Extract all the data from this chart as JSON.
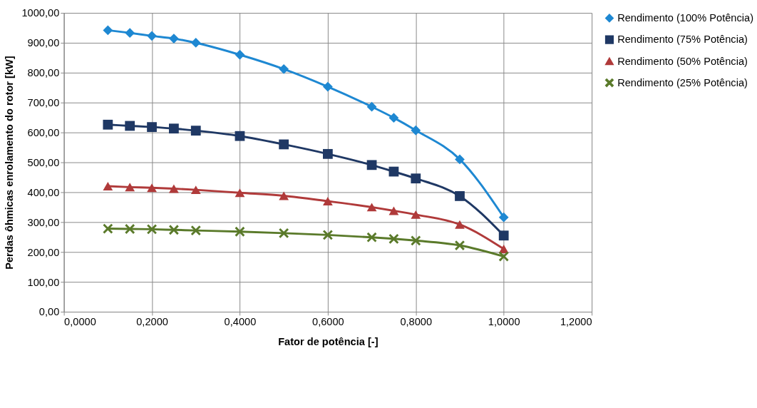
{
  "chart_data": {
    "type": "line",
    "xlabel": "Fator de potência [-]",
    "ylabel": "Perdas ôhmicas enrolamento do rotor [kW]",
    "x": [
      0.1,
      0.15,
      0.2,
      0.25,
      0.3,
      0.4,
      0.5,
      0.6,
      0.7,
      0.75,
      0.8,
      0.9,
      1.0
    ],
    "series": [
      {
        "name": "Rendimento (100% Potência)",
        "color": "#1e88d2",
        "marker": "diamond",
        "values": [
          942,
          933,
          923,
          914,
          900,
          860,
          812,
          753,
          686,
          649,
          607,
          510,
          316
        ]
      },
      {
        "name": "Rendimento (75% Potência)",
        "color": "#1f3864",
        "marker": "square",
        "values": [
          626,
          622,
          618,
          613,
          606,
          588,
          560,
          528,
          491,
          469,
          446,
          387,
          255
        ]
      },
      {
        "name": "Rendimento (50% Potência)",
        "color": "#b03a3a",
        "marker": "triangle",
        "values": [
          420,
          417,
          415,
          412,
          408,
          398,
          388,
          370,
          350,
          338,
          325,
          292,
          210
        ]
      },
      {
        "name": "Rendimento (25% Potência)",
        "color": "#5a7a2a",
        "marker": "cross",
        "values": [
          278,
          277,
          276,
          274,
          272,
          268,
          263,
          257,
          249,
          244,
          238,
          222,
          185
        ]
      }
    ],
    "xlim": [
      0,
      1.2
    ],
    "xticks": [
      {
        "value": 0,
        "label": "0,0000"
      },
      {
        "value": 0.2,
        "label": "0,2000"
      },
      {
        "value": 0.4,
        "label": "0,4000"
      },
      {
        "value": 0.6,
        "label": "0,6000"
      },
      {
        "value": 0.8,
        "label": "0,8000"
      },
      {
        "value": 1.0,
        "label": "1,0000"
      },
      {
        "value": 1.2,
        "label": "1,2000"
      }
    ],
    "ylim": [
      0,
      1000
    ],
    "yticks": [
      {
        "value": 0,
        "label": "0,00"
      },
      {
        "value": 100,
        "label": "100,00"
      },
      {
        "value": 200,
        "label": "200,00"
      },
      {
        "value": 300,
        "label": "300,00"
      },
      {
        "value": 400,
        "label": "400,00"
      },
      {
        "value": 500,
        "label": "500,00"
      },
      {
        "value": 600,
        "label": "600,00"
      },
      {
        "value": 700,
        "label": "700,00"
      },
      {
        "value": 800,
        "label": "800,00"
      },
      {
        "value": 900,
        "label": "900,00"
      },
      {
        "value": 1000,
        "label": "1000,00"
      }
    ],
    "grid": true,
    "legend": "top right",
    "line_style": "solid"
  }
}
